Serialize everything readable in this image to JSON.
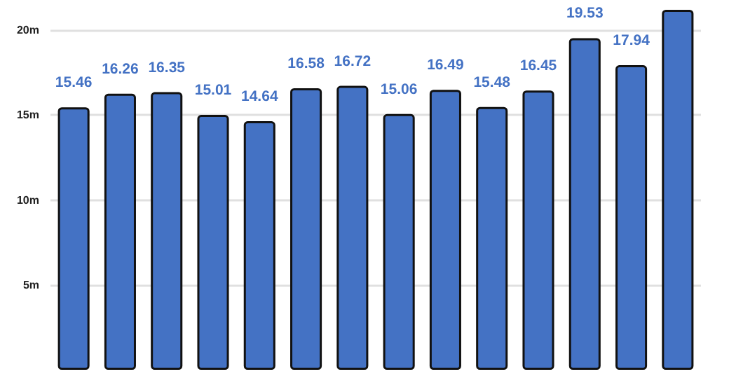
{
  "chart_data": {
    "type": "bar",
    "categories": [
      null,
      null,
      null,
      null,
      null,
      null,
      null,
      null,
      null,
      null,
      null,
      null,
      null,
      null
    ],
    "values": [
      15.46,
      16.26,
      16.35,
      15.01,
      14.64,
      16.58,
      16.72,
      15.06,
      16.49,
      15.48,
      16.45,
      19.53,
      17.94,
      21.2
    ],
    "value_labels": [
      "15.46",
      "16.26",
      "16.35",
      "15.01",
      "14.64",
      "16.58",
      "16.72",
      "15.06",
      "16.49",
      "15.48",
      "16.45",
      "19.53",
      "17.94",
      null
    ],
    "color": "#4472c4",
    "ylim": [
      0,
      21.2
    ],
    "yticks": [
      {
        "value": 5,
        "label": "5m"
      },
      {
        "value": 10,
        "label": "10m"
      },
      {
        "value": 15,
        "label": "15m"
      },
      {
        "value": 20,
        "label": "20m"
      }
    ],
    "grid": "y"
  }
}
